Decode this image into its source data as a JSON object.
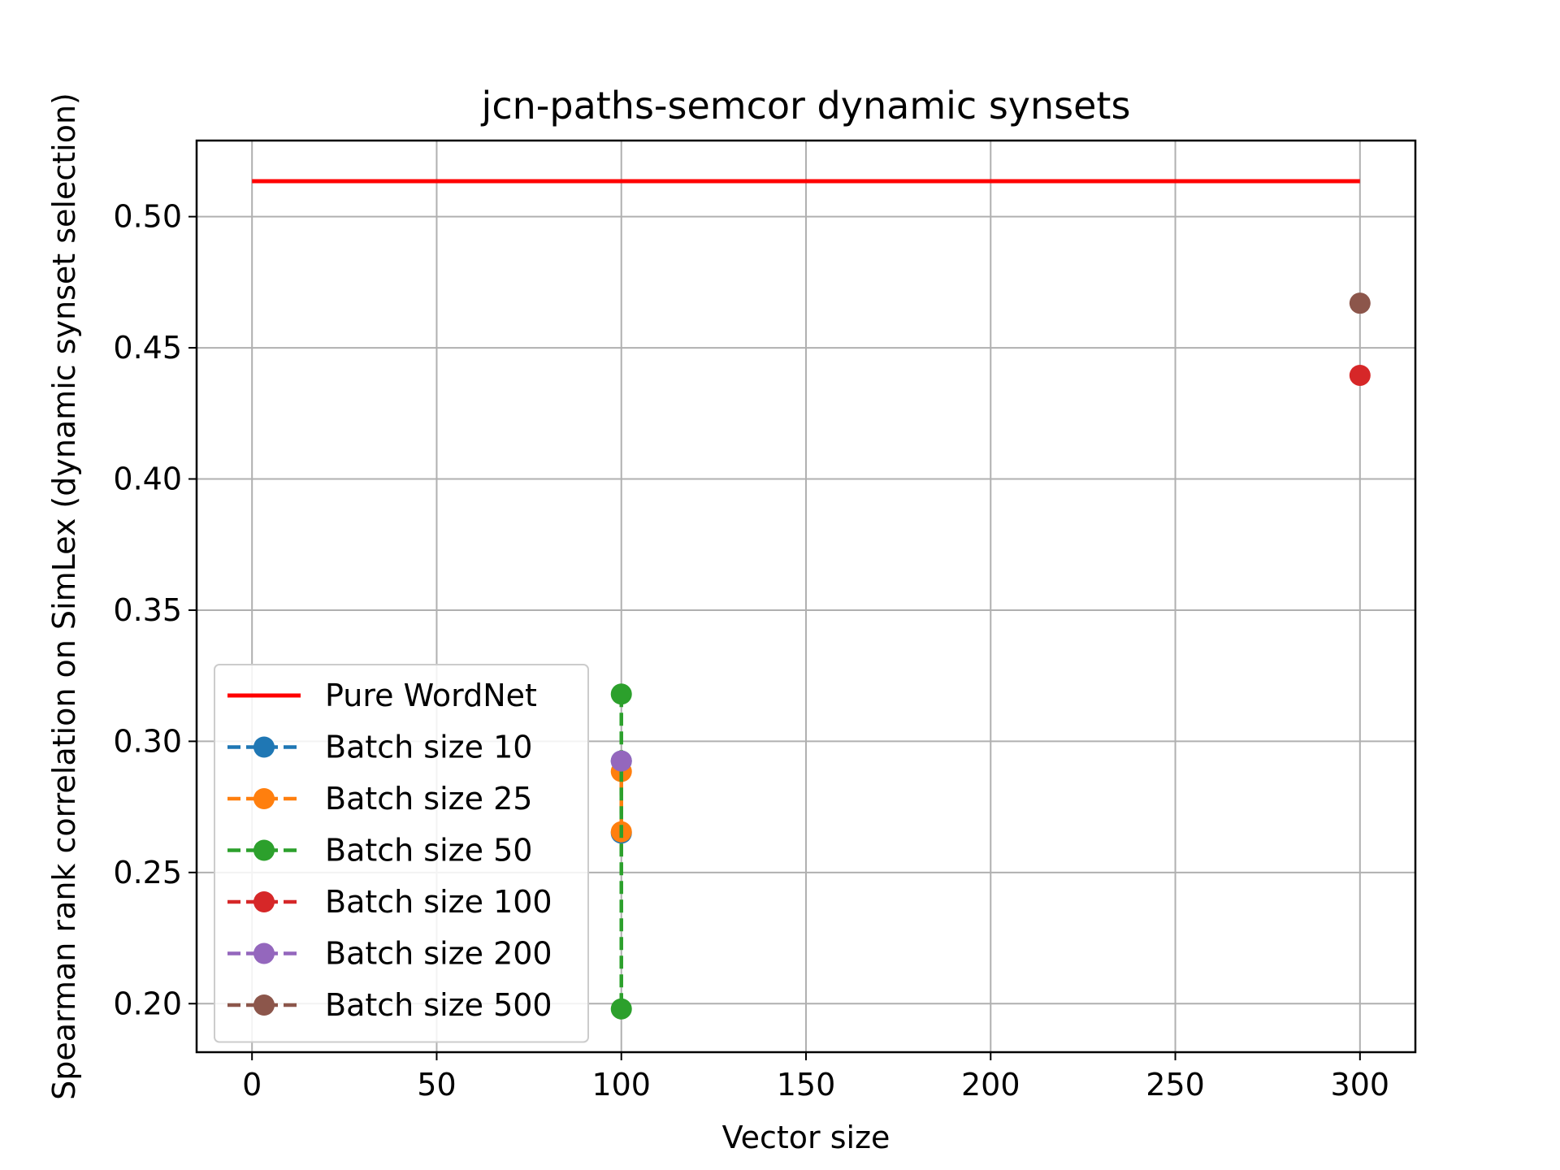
{
  "chart_data": {
    "type": "line",
    "title": "jcn-paths-semcor dynamic synsets",
    "xlabel": "Vector size",
    "ylabel": "Spearman rank correlation on SimLex (dynamic synset selection)",
    "xlim": [
      -15,
      315
    ],
    "ylim": [
      0.1815,
      0.529
    ],
    "xticks": [
      0,
      50,
      100,
      150,
      200,
      250,
      300
    ],
    "yticks": [
      0.2,
      0.25,
      0.3,
      0.35,
      0.4,
      0.45,
      0.5
    ],
    "xtick_labels": [
      "0",
      "50",
      "100",
      "150",
      "200",
      "250",
      "300"
    ],
    "ytick_labels": [
      "0.20",
      "0.25",
      "0.30",
      "0.35",
      "0.40",
      "0.45",
      "0.50"
    ],
    "grid": true,
    "legend_position": "lower-left",
    "series": [
      {
        "name": "Pure WordNet",
        "style": "solid",
        "marker": false,
        "color": "#ff0000",
        "x": [
          0,
          300
        ],
        "y": [
          0.5135,
          0.5135
        ]
      },
      {
        "name": "Batch size 10",
        "style": "dashed",
        "marker": true,
        "color": "#1f77b4",
        "x": [
          100,
          100
        ],
        "y": [
          0.265,
          0.2925
        ]
      },
      {
        "name": "Batch size 25",
        "style": "dashed",
        "marker": true,
        "color": "#ff7f0e",
        "x": [
          100,
          100
        ],
        "y": [
          0.2655,
          0.2885
        ]
      },
      {
        "name": "Batch size 50",
        "style": "dashed",
        "marker": true,
        "color": "#2ca02c",
        "x": [
          100,
          100
        ],
        "y": [
          0.318,
          0.198
        ]
      },
      {
        "name": "Batch size 100",
        "style": "dashed",
        "marker": true,
        "color": "#d62728",
        "x": [
          300
        ],
        "y": [
          0.4395
        ]
      },
      {
        "name": "Batch size 200",
        "style": "dashed",
        "marker": true,
        "color": "#9467bd",
        "x": [
          100
        ],
        "y": [
          0.2925
        ]
      },
      {
        "name": "Batch size 500",
        "style": "dashed",
        "marker": true,
        "color": "#8c564b",
        "x": [
          300
        ],
        "y": [
          0.467
        ]
      }
    ]
  }
}
